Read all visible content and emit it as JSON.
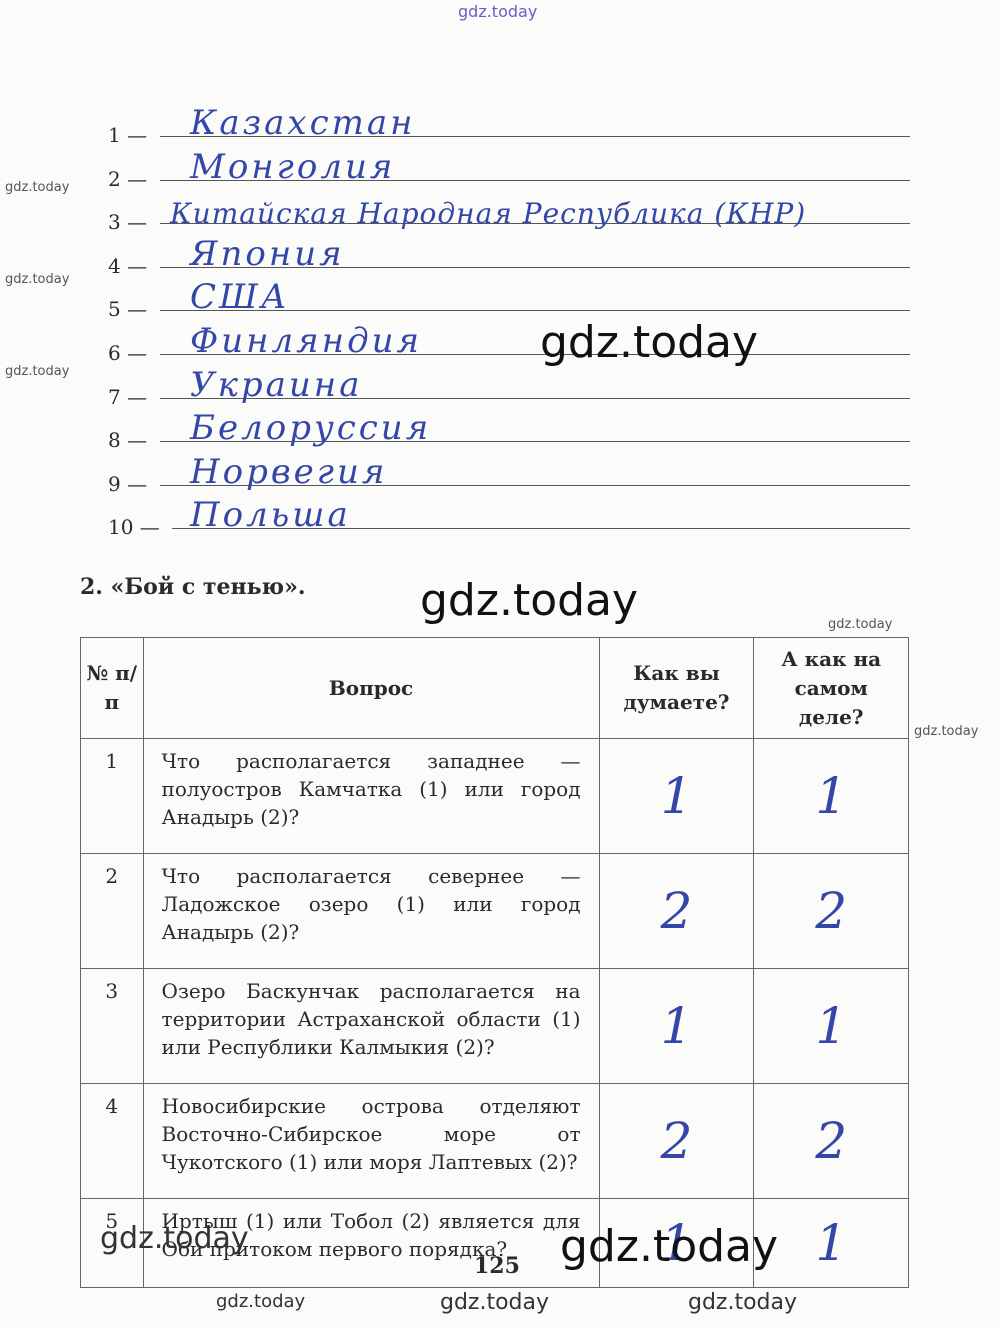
{
  "watermark": "gdz.today",
  "answers": [
    {
      "num": "1 —",
      "text": "Казахстан"
    },
    {
      "num": "2 —",
      "text": "Монголия"
    },
    {
      "num": "3 —",
      "text": "Китайская Народная Республика (КНР)"
    },
    {
      "num": "4 —",
      "text": "Япония"
    },
    {
      "num": "5 —",
      "text": "США"
    },
    {
      "num": "6 —",
      "text": "Финляндия"
    },
    {
      "num": "7 —",
      "text": "Украина"
    },
    {
      "num": "8 —",
      "text": "Белоруссия"
    },
    {
      "num": "9 —",
      "text": "Норвегия"
    },
    {
      "num": "10 —",
      "text": "Польша"
    }
  ],
  "task2": {
    "title": "2. «Бой с тенью».",
    "headers": [
      "№ п/п",
      "Вопрос",
      "Как вы думаете?",
      "А как на самом деле?"
    ],
    "rows": [
      {
        "n": "1",
        "q": "Что располагается западнее — полуостров Камчатка (1) или город Анадырь (2)?",
        "guess": "1",
        "actual": "1"
      },
      {
        "n": "2",
        "q": "Что располагается севернее — Ладожское озеро (1) или город Анадырь (2)?",
        "guess": "2",
        "actual": "2"
      },
      {
        "n": "3",
        "q": "Озеро Баскунчак располагается на территории Астраханской области (1) или Республики Калмыкия (2)?",
        "guess": "1",
        "actual": "1"
      },
      {
        "n": "4",
        "q": "Новосибирские острова отделяют Восточно-Сибирское море от Чукотского (1) или моря Лаптевых (2)?",
        "guess": "2",
        "actual": "2"
      },
      {
        "n": "5",
        "q": "Иртыш (1) или Тобол (2) является для Оби притоком первого порядка?",
        "guess": "1",
        "actual": "1"
      }
    ]
  },
  "page_number": "125"
}
